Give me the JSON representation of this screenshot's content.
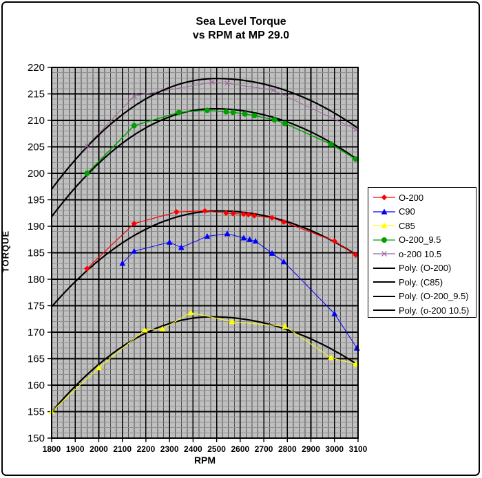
{
  "chart_data": {
    "type": "scatter",
    "title": "Sea Level Torque vs RPM at MP 29.0",
    "title_lines": [
      "Sea Level Torque",
      "vs RPM at MP 29.0"
    ],
    "xlabel": "RPM",
    "ylabel": "TORQUE",
    "x_axis": {
      "min": 1800,
      "max": 3100,
      "major_step": 100,
      "minor_step": 25
    },
    "y_axis": {
      "min": 150,
      "max": 220,
      "major_step": 5,
      "minor_step": 1
    },
    "plot_bg": "#C0C0C0",
    "grid": {
      "minor_x_color": "#4D4D4D",
      "minor_y_color": "#8F8F8F",
      "major_color": "#000000",
      "border_color": "#000000"
    },
    "series": [
      {
        "name": "o-200 10.5",
        "color": "#996699",
        "marker": "x",
        "line_width": 1,
        "under_poly": true,
        "points": [
          [
            1950,
            205.2
          ],
          [
            2150,
            214.6
          ],
          [
            2480,
            217.2
          ],
          [
            2545,
            217.0
          ],
          [
            2740,
            215.7
          ],
          [
            3090,
            208.3
          ]
        ]
      },
      {
        "name": "C85",
        "color": "#FFFF00",
        "marker": "triangle",
        "line_width": 1,
        "under_poly": false,
        "points": [
          [
            1800,
            155.0
          ],
          [
            2000,
            163.3
          ],
          [
            2195,
            170.4
          ],
          [
            2270,
            170.6
          ],
          [
            2390,
            173.7
          ],
          [
            2565,
            172.0
          ],
          [
            2790,
            171.1
          ],
          [
            2985,
            165.2
          ],
          [
            3090,
            164.0
          ]
        ]
      },
      {
        "name": "C90",
        "color": "#0000FF",
        "marker": "triangle",
        "line_width": 1,
        "under_poly": false,
        "points": [
          [
            2100,
            183.0
          ],
          [
            2150,
            185.3
          ],
          [
            2300,
            187.0
          ],
          [
            2350,
            186.0
          ],
          [
            2460,
            188.1
          ],
          [
            2545,
            188.6
          ],
          [
            2615,
            187.8
          ],
          [
            2640,
            187.5
          ],
          [
            2665,
            187.2
          ],
          [
            2735,
            184.9
          ],
          [
            2785,
            183.3
          ],
          [
            3000,
            173.5
          ],
          [
            3095,
            167.0
          ]
        ]
      },
      {
        "name": "O-200",
        "color": "#FF0000",
        "marker": "diamond",
        "line_width": 1.2,
        "under_poly": false,
        "points": [
          [
            1950,
            182.0
          ],
          [
            2150,
            190.5
          ],
          [
            2330,
            192.7
          ],
          [
            2450,
            192.9
          ],
          [
            2540,
            192.5
          ],
          [
            2570,
            192.4
          ],
          [
            2615,
            192.3
          ],
          [
            2635,
            192.2
          ],
          [
            2660,
            192.0
          ],
          [
            2735,
            191.6
          ],
          [
            2785,
            190.8
          ],
          [
            3000,
            187.2
          ],
          [
            3090,
            184.6
          ]
        ]
      },
      {
        "name": "O-200_9.5",
        "color": "#00A000",
        "marker": "circle",
        "line_width": 1.5,
        "under_poly": false,
        "points": [
          [
            1950,
            200.0
          ],
          [
            2150,
            209.0
          ],
          [
            2340,
            211.5
          ],
          [
            2460,
            211.9
          ],
          [
            2540,
            211.6
          ],
          [
            2570,
            211.5
          ],
          [
            2620,
            211.2
          ],
          [
            2660,
            210.9
          ],
          [
            2745,
            210.1
          ],
          [
            2790,
            209.4
          ],
          [
            2985,
            205.5
          ],
          [
            3090,
            202.7
          ]
        ]
      }
    ],
    "poly_curves": [
      {
        "name": "Poly. (o-200 10.5)",
        "left": [
          1800,
          197.0
        ],
        "vertex": [
          2500,
          217.9
        ],
        "right": [
          3100,
          208.5
        ],
        "color": "#000000",
        "width": 2.2
      },
      {
        "name": "Poly. (O-200_9.5)",
        "left": [
          1800,
          191.8
        ],
        "vertex": [
          2490,
          212.2
        ],
        "right": [
          3100,
          202.5
        ],
        "color": "#000000",
        "width": 2.2
      },
      {
        "name": "Poly. (O-200)",
        "left": [
          1800,
          174.8
        ],
        "vertex": [
          2510,
          192.9
        ],
        "right": [
          3100,
          184.4
        ],
        "color": "#000000",
        "width": 2.2
      },
      {
        "name": "Poly. (C85)",
        "left": [
          1800,
          154.9
        ],
        "vertex": [
          2480,
          172.9
        ],
        "right": [
          3100,
          163.8
        ],
        "color": "#000000",
        "width": 2.2
      }
    ]
  },
  "legend": {
    "items": [
      {
        "label": "O-200",
        "type": "series",
        "marker": "diamond",
        "color": "#FF0000"
      },
      {
        "label": "C90",
        "type": "series",
        "marker": "triangle",
        "color": "#0000FF"
      },
      {
        "label": "C85",
        "type": "series",
        "marker": "triangle",
        "color": "#FFFF00"
      },
      {
        "label": "O-200_9.5",
        "type": "series",
        "marker": "circle",
        "color": "#00A000"
      },
      {
        "label": "o-200 10.5",
        "type": "series",
        "marker": "x",
        "color": "#996699"
      },
      {
        "label": "Poly. (O-200)",
        "type": "poly",
        "marker": "none",
        "color": "#000000"
      },
      {
        "label": "Poly. (C85)",
        "type": "poly",
        "marker": "none",
        "color": "#000000"
      },
      {
        "label": "Poly. (O-200_9.5)",
        "type": "poly",
        "marker": "none",
        "color": "#000000"
      },
      {
        "label": "Poly. (o-200 10.5)",
        "type": "poly",
        "marker": "none",
        "color": "#000000"
      }
    ]
  }
}
